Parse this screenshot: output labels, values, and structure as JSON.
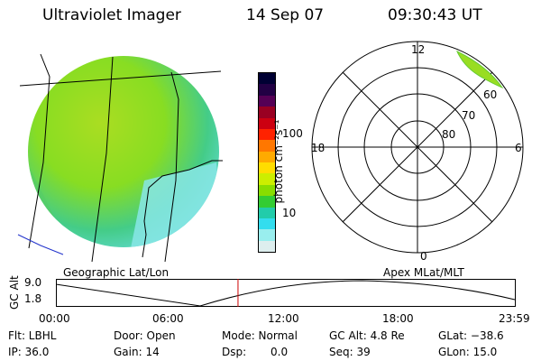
{
  "header": {
    "instrument": "Ultraviolet Imager",
    "date": "14 Sep 07",
    "time": "09:30:43 UT"
  },
  "colorbar": {
    "unit_label": "photon cm⁻²s⁻¹",
    "ticks": [
      "100",
      "10"
    ],
    "colors": [
      "#000033",
      "#220044",
      "#550055",
      "#990022",
      "#cc0011",
      "#ff2200",
      "#ff7700",
      "#ffaa00",
      "#ffdd00",
      "#ccee00",
      "#88dd00",
      "#33cc33",
      "#22ccaa",
      "#33ddee",
      "#99eeee",
      "#ddeeee"
    ]
  },
  "panels": {
    "left_label": "Geographic Lat/Lon",
    "right_label": "Apex MLat/MLT"
  },
  "polar": {
    "mlt_labels": {
      "top": "12",
      "left": "18",
      "right": "6",
      "bottom": "0"
    },
    "lat_labels": [
      "60",
      "70",
      "80"
    ]
  },
  "timeline": {
    "y_label": "GC Alt",
    "y_ticks": [
      "9.0",
      "1.8"
    ],
    "x_ticks": [
      "00:00",
      "06:00",
      "12:00",
      "18:00",
      "23:59"
    ],
    "current_time_fraction": 0.396
  },
  "info": {
    "filter": "Flt: LBHL",
    "door": "Door: Open",
    "mode": "Mode: Normal",
    "gc_alt": "GC Alt: 4.8 Re",
    "glat": "GLat: −38.6",
    "ip": "IP: 36.0",
    "gain": "Gain: 14",
    "dsp_label": "Dsp:",
    "dsp_value": "0.0",
    "seq": "Seq: 39",
    "glon": "GLon:  15.0"
  },
  "accent_colors": {
    "time_marker": "#cc0000",
    "coastline": "#2233cc",
    "image_green": "#88dd22",
    "image_cyan": "#55dddd"
  }
}
